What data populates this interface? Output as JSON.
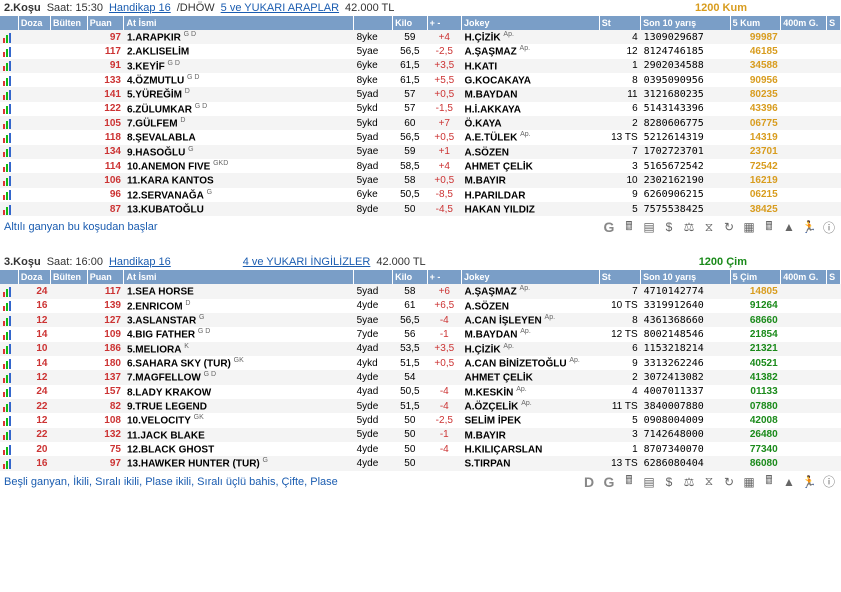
{
  "headers": [
    "",
    "Doza",
    "Bülten",
    "Puan",
    "At İsmi",
    "",
    "Kilo",
    "+ -",
    "Jokey",
    "St",
    "Son 10 yarış",
    "5 Kum",
    "400m G.",
    "S"
  ],
  "headers2": [
    "",
    "Doza",
    "Bülten",
    "Puan",
    "At İsmi",
    "",
    "Kilo",
    "+ -",
    "Jokey",
    "St",
    "Son 10 yarış",
    "5 Çim",
    "400m G.",
    "S"
  ],
  "race1": {
    "no": "2.Koşu",
    "time_label": "Saat: 15:30",
    "handikap": "Handikap 16",
    "dhow": "/DHÖW",
    "group": "5 ve YUKARI ARAPLAR",
    "prize": "42.000 TL",
    "track": "1200 Kum",
    "footer": "Altılı ganyan bu koşudan başlar",
    "rows": [
      {
        "puan": "97",
        "no": "1.",
        "at": "ARAPKIR",
        "sup": "G D",
        "yas": "8yke",
        "kilo": "59",
        "diff": "+4",
        "jokey": "H.ÇİZİK",
        "ap": "Ap.",
        "st": "4",
        "son10": "1309029687",
        "km": "99987"
      },
      {
        "puan": "117",
        "no": "2.",
        "at": "AKLISELİM",
        "sup": "",
        "yas": "5yae",
        "kilo": "56,5",
        "diff": "-2,5",
        "jokey": "A.ŞAŞMAZ",
        "ap": "Ap.",
        "st": "12",
        "son10": "8124746185",
        "km": "46185"
      },
      {
        "puan": "91",
        "no": "3.",
        "at": "KEYİF",
        "sup": "G D",
        "yas": "6yke",
        "kilo": "61,5",
        "diff": "+3,5",
        "jokey": "H.KATI",
        "ap": "",
        "st": "1",
        "son10": "2902034588",
        "km": "34588"
      },
      {
        "puan": "133",
        "no": "4.",
        "at": "ÖZMUTLU",
        "sup": "G D",
        "yas": "8yke",
        "kilo": "61,5",
        "diff": "+5,5",
        "jokey": "G.KOCAKAYA",
        "ap": "",
        "st": "8",
        "son10": "0395090956",
        "km": "90956"
      },
      {
        "puan": "141",
        "no": "5.",
        "at": "YÜREĞİM",
        "sup": "D",
        "yas": "5yad",
        "kilo": "57",
        "diff": "+0,5",
        "jokey": "M.BAYDAN",
        "ap": "",
        "st": "11",
        "son10": "3121680235",
        "km": "80235"
      },
      {
        "puan": "122",
        "no": "6.",
        "at": "ZÜLUMKAR",
        "sup": "G D",
        "yas": "5ykd",
        "kilo": "57",
        "diff": "-1,5",
        "jokey": "H.İ.AKKAYA",
        "ap": "",
        "st": "6",
        "son10": "5143143396",
        "km": "43396"
      },
      {
        "puan": "105",
        "no": "7.",
        "at": "GÜLFEM",
        "sup": "D",
        "yas": "5ykd",
        "kilo": "60",
        "diff": "+7",
        "jokey": "Ö.KAYA",
        "ap": "",
        "st": "2",
        "son10": "8280606775",
        "km": "06775"
      },
      {
        "puan": "118",
        "no": "8.",
        "at": "ŞEVALABLA",
        "sup": "",
        "yas": "5yad",
        "kilo": "56,5",
        "diff": "+0,5",
        "jokey": "A.E.TÜLEK",
        "ap": "Ap.",
        "st": "13 TS",
        "son10": "5212614319",
        "km": "14319"
      },
      {
        "puan": "134",
        "no": "9.",
        "at": "HASOĞLU",
        "sup": "G",
        "yas": "5yae",
        "kilo": "59",
        "diff": "+1",
        "jokey": "A.SÖZEN",
        "ap": "",
        "st": "7",
        "son10": "1702723701",
        "km": "23701"
      },
      {
        "puan": "114",
        "no": "10.",
        "at": "ANEMON FIVE",
        "sup": "GKD",
        "yas": "8yad",
        "kilo": "58,5",
        "diff": "+4",
        "jokey": "AHMET ÇELİK",
        "ap": "",
        "st": "3",
        "son10": "5165672542",
        "km": "72542"
      },
      {
        "puan": "106",
        "no": "11.",
        "at": "KARA KANTOS",
        "sup": "",
        "yas": "5yae",
        "kilo": "58",
        "diff": "+0,5",
        "jokey": "M.BAYIR",
        "ap": "",
        "st": "10",
        "son10": "2302162190",
        "km": "16219"
      },
      {
        "puan": "96",
        "no": "12.",
        "at": "SERVANAĞA",
        "sup": "G",
        "yas": "6yke",
        "kilo": "50,5",
        "diff": "-8,5",
        "jokey": "H.PARILDAR",
        "ap": "",
        "st": "9",
        "son10": "6260906215",
        "km": "06215"
      },
      {
        "puan": "87",
        "no": "13.",
        "at": "KUBATOĞLU",
        "sup": "",
        "yas": "8yde",
        "kilo": "50",
        "diff": "-4,5",
        "jokey": "HAKAN YILDIZ",
        "ap": "",
        "st": "5",
        "son10": "7575538425",
        "km": "38425"
      }
    ]
  },
  "race2": {
    "no": "3.Koşu",
    "time_label": "Saat: 16:00",
    "handikap": "Handikap 16",
    "group": "4 ve YUKARI İNGİLİZLER",
    "prize": "42.000 TL",
    "track": "1200 Çim",
    "footer": "Beşli ganyan, İkili, Sıralı ikili, Plase ikili, Sıralı üçlü bahis, Çifte, Plase",
    "rows": [
      {
        "doza": "24",
        "puan": "117",
        "no": "1.",
        "at": "SEA HORSE",
        "sup": "",
        "yas": "5yad",
        "kilo": "58",
        "diff": "+6",
        "jokey": "A.ŞAŞMAZ",
        "ap": "Ap.",
        "st": "7",
        "son10": "4710142774",
        "km": "14805"
      },
      {
        "doza": "16",
        "puan": "139",
        "no": "2.",
        "at": "ENRICOM",
        "sup": "D",
        "yas": "4yde",
        "kilo": "61",
        "diff": "+6,5",
        "jokey": "A.SÖZEN",
        "ap": "",
        "st": "10 TS",
        "son10": "3319912640",
        "km": "91264",
        "green": true
      },
      {
        "doza": "12",
        "puan": "127",
        "no": "3.",
        "at": "ASLANSTAR",
        "sup": "G",
        "yas": "5yae",
        "kilo": "56,5",
        "diff": "-4",
        "jokey": "A.CAN İŞLEYEN",
        "ap": "Ap.",
        "st": "8",
        "son10": "4361368660",
        "km": "68660",
        "green": true
      },
      {
        "doza": "14",
        "puan": "109",
        "no": "4.",
        "at": "BIG FATHER",
        "sup": "G D",
        "yas": "7yde",
        "kilo": "56",
        "diff": "-1",
        "jokey": "M.BAYDAN",
        "ap": "Ap.",
        "st": "12 TS",
        "son10": "8002148546",
        "km": "21854",
        "green": true
      },
      {
        "doza": "10",
        "puan": "186",
        "no": "5.",
        "at": "MELIORA",
        "sup": "K",
        "yas": "4yad",
        "kilo": "53,5",
        "diff": "+3,5",
        "jokey": "H.ÇİZİK",
        "ap": "Ap.",
        "st": "6",
        "son10": "1153218214",
        "km": "21321",
        "green": true
      },
      {
        "doza": "14",
        "puan": "180",
        "no": "6.",
        "at": "SAHARA SKY (TUR)",
        "sup": "GK",
        "yas": "4ykd",
        "kilo": "51,5",
        "diff": "+0,5",
        "jokey": "A.CAN BİNİZETOĞLU",
        "ap": "Ap.",
        "st": "9",
        "son10": "3313262246",
        "km": "40521",
        "green": true
      },
      {
        "doza": "12",
        "puan": "137",
        "no": "7.",
        "at": "MAGFELLOW",
        "sup": "G D",
        "yas": "4yde",
        "kilo": "54",
        "diff": "",
        "jokey": "AHMET ÇELİK",
        "ap": "",
        "st": "2",
        "son10": "3072413082",
        "km": "41382",
        "green": true
      },
      {
        "doza": "24",
        "puan": "157",
        "no": "8.",
        "at": "LADY KRAKOW",
        "sup": "",
        "yas": "4yad",
        "kilo": "50,5",
        "diff": "-4",
        "jokey": "M.KESKİN",
        "ap": "Ap.",
        "st": "4",
        "son10": "4007011337",
        "km": "01133",
        "green": true
      },
      {
        "doza": "22",
        "puan": "82",
        "no": "9.",
        "at": "TRUE LEGEND",
        "sup": "",
        "yas": "5yde",
        "kilo": "51,5",
        "diff": "-4",
        "jokey": "A.ÖZÇELİK",
        "ap": "Ap.",
        "st": "11 TS",
        "son10": "3840007880",
        "km": "07880",
        "green": true
      },
      {
        "doza": "12",
        "puan": "108",
        "no": "10.",
        "at": "VELOCITY",
        "sup": "GK",
        "yas": "5ydd",
        "kilo": "50",
        "diff": "-2,5",
        "jokey": "SELİM İPEK",
        "ap": "",
        "st": "5",
        "son10": "0908004009",
        "km": "42008",
        "green": true
      },
      {
        "doza": "22",
        "puan": "132",
        "no": "11.",
        "at": "JACK BLAKE",
        "sup": "",
        "yas": "5yde",
        "kilo": "50",
        "diff": "-1",
        "jokey": "M.BAYIR",
        "ap": "",
        "st": "3",
        "son10": "7142648000",
        "km": "26480",
        "green": true
      },
      {
        "doza": "20",
        "puan": "75",
        "no": "12.",
        "at": "BLACK GHOST",
        "sup": "",
        "yas": "4yde",
        "kilo": "50",
        "diff": "-4",
        "jokey": "H.KILIÇARSLAN",
        "ap": "",
        "st": "1",
        "son10": "8707340070",
        "km": "77340",
        "green": true
      },
      {
        "doza": "16",
        "puan": "97",
        "no": "13.",
        "at": "HAWKER HUNTER (TUR)",
        "sup": "G",
        "yas": "4yde",
        "kilo": "50",
        "diff": "",
        "jokey": "S.TIRPAN",
        "ap": "",
        "st": "13 TS",
        "son10": "6286080404",
        "km": "86080",
        "green": true
      }
    ]
  },
  "icons1": [
    "G",
    "calc",
    "list",
    "dollar",
    "gavel",
    "time",
    "cycle",
    "grid",
    "calc2",
    "mt",
    "run",
    "info"
  ],
  "icons2": [
    "D",
    "G",
    "calc",
    "list",
    "dollar",
    "gavel",
    "time",
    "cycle",
    "grid",
    "calc2",
    "mt",
    "run",
    "info"
  ]
}
